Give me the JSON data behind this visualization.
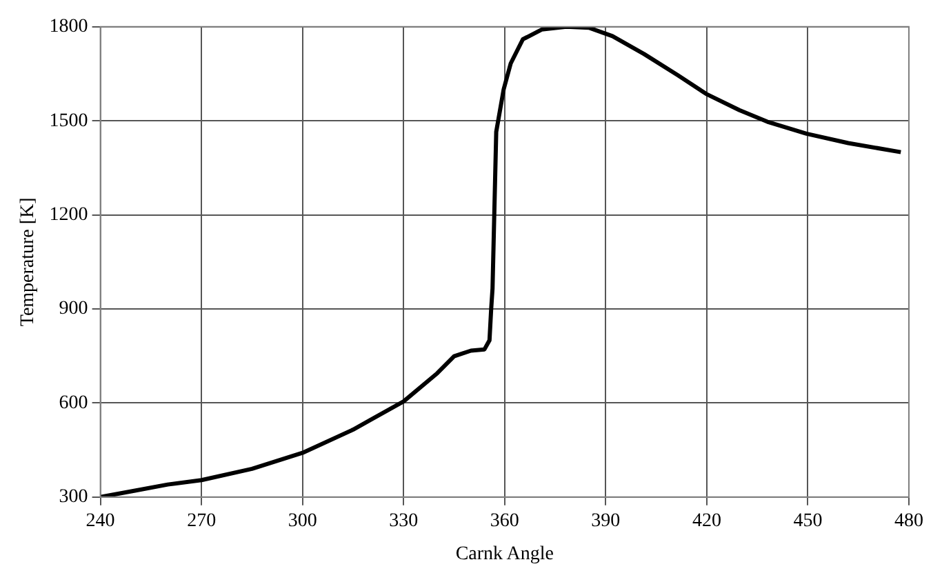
{
  "chart_data": {
    "type": "line",
    "xlabel": "Carnk Angle",
    "ylabel": "Temperature [K]",
    "xlim": [
      240,
      480
    ],
    "xticks": [
      240,
      270,
      300,
      330,
      360,
      390,
      420,
      450,
      480
    ],
    "ylim": [
      300,
      1800
    ],
    "yticks": [
      300,
      600,
      900,
      1200,
      1500,
      1800
    ],
    "grid": true,
    "marker": "none",
    "line_style": "solid",
    "series": [
      {
        "color": "#000000",
        "x": [
          240,
          250,
          260,
          270,
          285,
          300,
          315,
          320,
          330,
          340,
          345,
          350,
          354,
          355.5,
          356,
          356.4,
          357.5,
          359.7,
          361.8,
          365.4,
          371,
          378.3,
          385,
          392,
          401.4,
          411.3,
          419.8,
          429.7,
          438,
          449.6,
          462,
          477.6
        ],
        "values": [
          300,
          320,
          340,
          354,
          390,
          441,
          515,
          545,
          605,
          695,
          749,
          767,
          771,
          800,
          900,
          965,
          1465,
          1600,
          1683,
          1760,
          1791,
          1800,
          1797,
          1770,
          1713,
          1646,
          1586,
          1534,
          1497,
          1459,
          1429,
          1400
        ]
      }
    ]
  }
}
